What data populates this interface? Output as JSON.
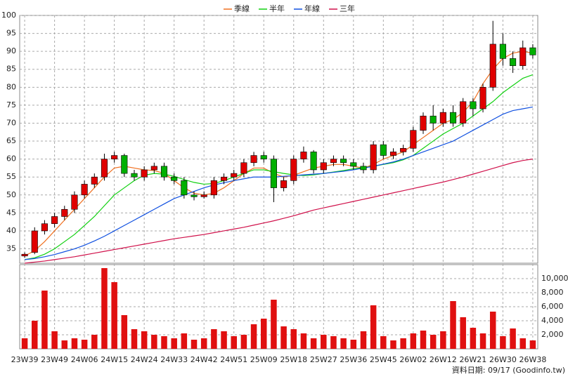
{
  "chart_data": [
    {
      "type": "candlestick",
      "categories": [
        "23W39",
        null,
        null,
        "23W49",
        null,
        null,
        "24W06",
        null,
        null,
        "24W15",
        null,
        null,
        "24W24",
        null,
        null,
        "24W33",
        null,
        null,
        "24W42",
        null,
        null,
        "24W51",
        null,
        null,
        "25W09",
        null,
        null,
        "25W18",
        null,
        null,
        "25W27",
        null,
        null,
        "25W36",
        null,
        null,
        "25W45",
        null,
        null,
        "26W02",
        null,
        null,
        "26W12",
        null,
        null,
        "26W21",
        null,
        null,
        "26W30",
        null,
        null,
        "26W38"
      ],
      "open": [
        33,
        34,
        40,
        42,
        44,
        46,
        50,
        53,
        55,
        60,
        61,
        56,
        55,
        57,
        58,
        55,
        54,
        50,
        49.5,
        50,
        54,
        55,
        56,
        59,
        61,
        60,
        52,
        54,
        60,
        62,
        57,
        59,
        60,
        59,
        58,
        57,
        64,
        61,
        62,
        63,
        68,
        72,
        70,
        73,
        70,
        76,
        74,
        80,
        92,
        88,
        86,
        91
      ],
      "high": [
        34,
        41,
        43,
        45,
        47,
        51,
        54,
        56,
        61.5,
        62,
        61.5,
        57,
        58,
        59,
        59,
        56,
        55,
        51,
        51,
        55,
        56,
        57,
        60,
        62,
        62,
        61,
        55,
        61,
        63.5,
        62.5,
        60,
        61,
        61,
        60,
        59,
        65,
        65,
        63,
        64,
        69,
        73,
        75,
        74,
        75,
        77,
        77,
        81,
        98.5,
        95,
        90,
        93,
        92
      ],
      "low": [
        32.5,
        33.5,
        39,
        41,
        43,
        45,
        49,
        52,
        54,
        59,
        55,
        54,
        54,
        56,
        54,
        53,
        49,
        48.5,
        49,
        49,
        53,
        54,
        55,
        58,
        59,
        48,
        51,
        53,
        59,
        56,
        56,
        58,
        58,
        57,
        56,
        56,
        60,
        60,
        61,
        62,
        67,
        68,
        69,
        69,
        69,
        72,
        73,
        79,
        86,
        84,
        85,
        88
      ],
      "close": [
        33.5,
        40,
        42,
        44,
        46,
        50,
        53,
        55,
        60,
        61,
        56,
        55,
        57,
        58,
        55,
        54,
        50,
        49.5,
        50,
        54,
        55,
        56,
        59,
        61,
        60,
        52,
        54,
        60,
        62,
        57,
        59,
        60,
        59,
        58,
        57,
        64,
        61,
        62,
        63,
        68,
        72,
        70,
        73,
        70,
        76,
        74,
        80,
        92,
        88,
        86,
        91,
        89
      ],
      "up_color": "#e00000",
      "down_color": "#00b000",
      "series": [
        {
          "name": "季線",
          "color": "#f07020",
          "values": [
            33,
            34.5,
            37,
            40,
            43,
            46,
            49,
            52,
            55,
            57.5,
            58,
            57.5,
            57,
            56.8,
            56,
            54,
            52,
            50.5,
            50,
            50.5,
            52,
            54,
            56,
            57.5,
            57.5,
            56,
            55,
            55.5,
            56.5,
            57.5,
            58,
            58.5,
            58.5,
            58,
            57.5,
            58.5,
            60,
            61,
            62,
            64,
            66,
            68,
            70,
            71,
            73,
            76,
            81,
            85,
            88,
            89.5,
            90,
            89.5
          ]
        },
        {
          "name": "半年",
          "color": "#10d010",
          "values": [
            32,
            32.5,
            33.5,
            35,
            37,
            39,
            41.5,
            44,
            47,
            50,
            52,
            54,
            55.5,
            56,
            55.8,
            55.2,
            54.3,
            53.5,
            53,
            53.2,
            54,
            55,
            56,
            57,
            57,
            56.5,
            56,
            55.6,
            55.4,
            55.6,
            56,
            56.4,
            56.8,
            57.3,
            57.6,
            58,
            58.5,
            59,
            59.8,
            61,
            63,
            65,
            67,
            68.5,
            70,
            72,
            74,
            76,
            78.5,
            80.5,
            82.5,
            83.5
          ]
        },
        {
          "name": "年線",
          "color": "#1050e0",
          "values": [
            32,
            32.3,
            32.8,
            33.4,
            34.2,
            35,
            36,
            37.2,
            38.5,
            40,
            41.5,
            43,
            44.5,
            46,
            47.5,
            49,
            50,
            51,
            52,
            52.8,
            53.4,
            54,
            54.5,
            55,
            55,
            55,
            55.2,
            55.4,
            55.6,
            55.8,
            56,
            56.3,
            56.6,
            57,
            57.5,
            58,
            58.6,
            59.2,
            60,
            61,
            62,
            63,
            64,
            65,
            66.5,
            68,
            69.5,
            71,
            72.5,
            73.5,
            74,
            74.5
          ]
        },
        {
          "name": "三年",
          "color": "#d0104a",
          "values": [
            31,
            31.3,
            31.6,
            32,
            32.4,
            32.8,
            33.3,
            33.8,
            34.3,
            34.8,
            35.3,
            35.8,
            36.3,
            36.8,
            37.3,
            37.8,
            38.2,
            38.6,
            39,
            39.5,
            40,
            40.5,
            41,
            41.6,
            42.2,
            42.8,
            43.5,
            44.2,
            45,
            45.8,
            46.4,
            47,
            47.6,
            48.2,
            48.8,
            49.4,
            50,
            50.6,
            51.2,
            51.8,
            52.4,
            53,
            53.6,
            54.3,
            55,
            55.8,
            56.6,
            57.4,
            58.2,
            59,
            59.6,
            60
          ]
        }
      ],
      "ylim": [
        31,
        100
      ],
      "yticks": [
        35,
        40,
        45,
        50,
        55,
        60,
        65,
        70,
        75,
        80,
        85,
        90,
        95,
        100
      ],
      "grid": true
    },
    {
      "type": "bar",
      "color": "#e01010",
      "values": [
        1500,
        4000,
        8300,
        2500,
        1200,
        1500,
        1300,
        2000,
        11500,
        9500,
        4800,
        2800,
        2500,
        2000,
        1800,
        1500,
        2200,
        1300,
        1500,
        2800,
        2500,
        1800,
        2000,
        3500,
        4300,
        7000,
        3200,
        2800,
        2200,
        1500,
        2000,
        1800,
        1500,
        1300,
        2500,
        6200,
        1800,
        1200,
        1500,
        2200,
        2600,
        2000,
        2500,
        6800,
        4500,
        3000,
        2200,
        5300,
        1800,
        2900,
        1500,
        1200
      ],
      "ylim": [
        0,
        12000
      ],
      "yticks": [
        {
          "value": 2000,
          "label": "2,000"
        },
        {
          "value": 4000,
          "label": "4,000"
        },
        {
          "value": 6000,
          "label": "6,000"
        },
        {
          "value": 8000,
          "label": "8,000"
        },
        {
          "value": 10000,
          "label": "10,000"
        }
      ],
      "grid": true
    }
  ],
  "footer": "資料日期: 09/17  (Goodinfo.tw)"
}
